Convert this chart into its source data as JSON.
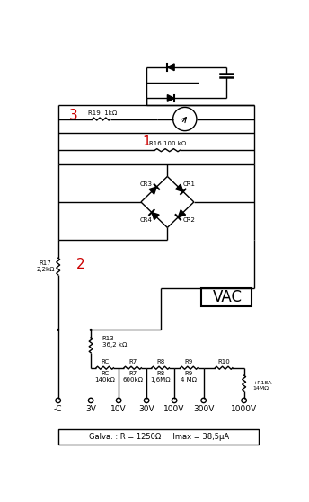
{
  "background_color": "#ffffff",
  "line_color": "#000000",
  "red_color": "#cc0000",
  "fig_width": 3.44,
  "fig_height": 5.59,
  "dpi": 100,
  "label_fontsize": 6.5,
  "small_fontsize": 5.5,
  "tiny_fontsize": 5.0,
  "galva_label": "Galva. : R = 1250Ω     Imax = 38,5μA",
  "terminal_labels": [
    "-C",
    "3V",
    "10V",
    "30V",
    "100V",
    "300V",
    "1000V"
  ]
}
